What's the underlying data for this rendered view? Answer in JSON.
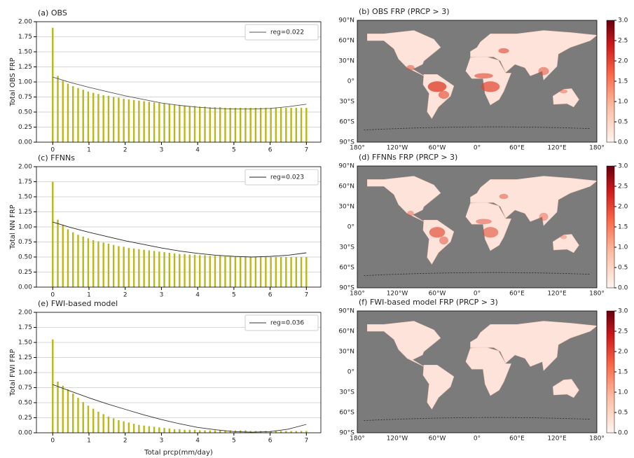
{
  "chart_data": [
    {
      "type": "bar",
      "title": "(a) OBS",
      "ylabel": "Total OBS FRP",
      "color": "#b8b818",
      "x": [
        0,
        0.14,
        0.28,
        0.42,
        0.56,
        0.7,
        0.84,
        0.98,
        1.12,
        1.26,
        1.4,
        1.54,
        1.68,
        1.82,
        1.96,
        2.1,
        2.24,
        2.38,
        2.52,
        2.66,
        2.8,
        2.94,
        3.08,
        3.22,
        3.36,
        3.5,
        3.64,
        3.78,
        3.92,
        4.06,
        4.2,
        4.34,
        4.48,
        4.62,
        4.76,
        4.9,
        5.04,
        5.18,
        5.32,
        5.46,
        5.6,
        5.74,
        5.88,
        6.02,
        6.16,
        6.3,
        6.44,
        6.58,
        6.72,
        6.86,
        7
      ],
      "values": [
        1.9,
        1.1,
        1.02,
        0.97,
        0.93,
        0.9,
        0.87,
        0.84,
        0.82,
        0.8,
        0.78,
        0.77,
        0.75,
        0.74,
        0.72,
        0.71,
        0.7,
        0.69,
        0.68,
        0.67,
        0.66,
        0.65,
        0.64,
        0.63,
        0.62,
        0.62,
        0.61,
        0.6,
        0.6,
        0.59,
        0.59,
        0.58,
        0.58,
        0.58,
        0.57,
        0.57,
        0.57,
        0.57,
        0.57,
        0.57,
        0.57,
        0.57,
        0.57,
        0.57,
        0.57,
        0.57,
        0.57,
        0.57,
        0.57,
        0.57,
        0.57
      ],
      "series": [
        {
          "name": "reg=0.022",
          "color": "#555555",
          "x": [
            0,
            0.5,
            1,
            1.5,
            2,
            2.5,
            3,
            3.5,
            4,
            4.5,
            5,
            5.5,
            6,
            6.5,
            7
          ],
          "values": [
            1.08,
            0.99,
            0.91,
            0.84,
            0.77,
            0.71,
            0.65,
            0.61,
            0.58,
            0.56,
            0.55,
            0.55,
            0.56,
            0.59,
            0.63
          ]
        }
      ],
      "xlim": [
        -0.45,
        7.4
      ],
      "xticks": [
        0,
        1,
        2,
        3,
        4,
        5,
        6,
        7
      ],
      "ylim": [
        0,
        2
      ],
      "yticks": [
        {
          "value": 0,
          "label": "0.00"
        },
        {
          "value": 0.25,
          "label": "0.25"
        },
        {
          "value": 0.5,
          "label": "0.50"
        },
        {
          "value": 0.75,
          "label": "0.75"
        },
        {
          "value": 1,
          "label": "1.00"
        },
        {
          "value": 1.25,
          "label": "1.25"
        },
        {
          "value": 1.5,
          "label": "1.50"
        },
        {
          "value": 1.75,
          "label": "1.75"
        },
        {
          "value": 2,
          "label": "2.00"
        }
      ],
      "grid": true
    },
    {
      "type": "bar",
      "title": "(c) FFNNs",
      "ylabel": "Total NN FRP",
      "color": "#b8b818",
      "x": [
        0,
        0.14,
        0.28,
        0.42,
        0.56,
        0.7,
        0.84,
        0.98,
        1.12,
        1.26,
        1.4,
        1.54,
        1.68,
        1.82,
        1.96,
        2.1,
        2.24,
        2.38,
        2.52,
        2.66,
        2.8,
        2.94,
        3.08,
        3.22,
        3.36,
        3.5,
        3.64,
        3.78,
        3.92,
        4.06,
        4.2,
        4.34,
        4.48,
        4.62,
        4.76,
        4.9,
        5.04,
        5.18,
        5.32,
        5.46,
        5.6,
        5.74,
        5.88,
        6.02,
        6.16,
        6.3,
        6.44,
        6.58,
        6.72,
        6.86,
        7
      ],
      "values": [
        1.75,
        1.12,
        1.03,
        0.96,
        0.91,
        0.87,
        0.84,
        0.81,
        0.78,
        0.76,
        0.74,
        0.72,
        0.7,
        0.68,
        0.67,
        0.65,
        0.64,
        0.63,
        0.62,
        0.61,
        0.6,
        0.59,
        0.58,
        0.57,
        0.56,
        0.55,
        0.55,
        0.54,
        0.54,
        0.53,
        0.53,
        0.52,
        0.52,
        0.52,
        0.51,
        0.51,
        0.51,
        0.51,
        0.5,
        0.5,
        0.5,
        0.5,
        0.5,
        0.5,
        0.5,
        0.5,
        0.5,
        0.5,
        0.5,
        0.5,
        0.5
      ],
      "series": [
        {
          "name": "reg=0.023",
          "color": "#222222",
          "x": [
            0,
            0.5,
            1,
            1.5,
            2,
            2.5,
            3,
            3.5,
            4,
            4.5,
            5,
            5.5,
            6,
            6.5,
            7
          ],
          "values": [
            1.08,
            0.99,
            0.91,
            0.84,
            0.77,
            0.71,
            0.65,
            0.6,
            0.56,
            0.53,
            0.51,
            0.5,
            0.51,
            0.53,
            0.57
          ]
        }
      ],
      "xlim": [
        -0.45,
        7.4
      ],
      "xticks": [
        0,
        1,
        2,
        3,
        4,
        5,
        6,
        7
      ],
      "ylim": [
        0,
        2
      ],
      "yticks": [
        {
          "value": 0,
          "label": "0.00"
        },
        {
          "value": 0.25,
          "label": "0.25"
        },
        {
          "value": 0.5,
          "label": "0.50"
        },
        {
          "value": 0.75,
          "label": "0.75"
        },
        {
          "value": 1,
          "label": "1.00"
        },
        {
          "value": 1.25,
          "label": "1.25"
        },
        {
          "value": 1.5,
          "label": "1.50"
        },
        {
          "value": 1.75,
          "label": "1.75"
        },
        {
          "value": 2,
          "label": "2.00"
        }
      ],
      "grid": true
    },
    {
      "type": "bar",
      "title": "(e) FWI-based model",
      "ylabel": "Total FWI FRP",
      "xlabel": "Total prcp(mm/day)",
      "color": "#b8b818",
      "x": [
        0,
        0.14,
        0.28,
        0.42,
        0.56,
        0.7,
        0.84,
        0.98,
        1.12,
        1.26,
        1.4,
        1.54,
        1.68,
        1.82,
        1.96,
        2.1,
        2.24,
        2.38,
        2.52,
        2.66,
        2.8,
        2.94,
        3.08,
        3.22,
        3.36,
        3.5,
        3.64,
        3.78,
        3.92,
        4.06,
        4.2,
        4.34,
        4.48,
        4.62,
        4.76,
        4.9,
        5.04,
        5.18,
        5.32,
        5.46,
        5.6,
        5.74,
        5.88,
        6.02,
        6.16,
        6.3,
        6.44,
        6.58,
        6.72,
        6.86,
        7
      ],
      "values": [
        1.55,
        0.85,
        0.78,
        0.72,
        0.65,
        0.58,
        0.51,
        0.45,
        0.4,
        0.35,
        0.31,
        0.27,
        0.24,
        0.21,
        0.19,
        0.17,
        0.15,
        0.13,
        0.12,
        0.11,
        0.1,
        0.09,
        0.08,
        0.07,
        0.06,
        0.06,
        0.05,
        0.05,
        0.05,
        0.04,
        0.04,
        0.04,
        0.04,
        0.04,
        0.04,
        0.04,
        0.04,
        0.04,
        0.04,
        0.03,
        0.03,
        0.03,
        0.03,
        0.03,
        0.03,
        0.03,
        0.03,
        0.03,
        0.03,
        0.03,
        0.03
      ],
      "series": [
        {
          "name": "reg=0.036",
          "color": "#333333",
          "x": [
            0,
            0.5,
            1,
            1.5,
            2,
            2.5,
            3,
            3.5,
            4,
            4.5,
            5,
            5.5,
            6,
            6.5,
            7
          ],
          "values": [
            0.8,
            0.69,
            0.58,
            0.48,
            0.39,
            0.3,
            0.22,
            0.15,
            0.09,
            0.05,
            0.02,
            0.01,
            0.02,
            0.06,
            0.14
          ]
        }
      ],
      "xlim": [
        -0.45,
        7.4
      ],
      "xticks": [
        0,
        1,
        2,
        3,
        4,
        5,
        6,
        7
      ],
      "ylim": [
        0,
        2
      ],
      "yticks": [
        {
          "value": 0,
          "label": "0.00"
        },
        {
          "value": 0.25,
          "label": "0.25"
        },
        {
          "value": 0.5,
          "label": "0.50"
        },
        {
          "value": 0.75,
          "label": "0.75"
        },
        {
          "value": 1,
          "label": "1.00"
        },
        {
          "value": 1.25,
          "label": "1.25"
        },
        {
          "value": 1.5,
          "label": "1.50"
        },
        {
          "value": 1.75,
          "label": "1.75"
        },
        {
          "value": 2,
          "label": "2.00"
        }
      ],
      "grid": true
    }
  ],
  "maps": [
    {
      "title": "(b) OBS FRP (PRCP > 3)"
    },
    {
      "title": "(d) FFNNs FRP (PRCP > 3)"
    },
    {
      "title": "(f) FWI-based model FRP (PRCP > 3)"
    }
  ],
  "map_axes": {
    "lat_labels": [
      "90°N",
      "60°N",
      "30°N",
      "0°",
      "30°S",
      "60°S",
      "90°S"
    ],
    "lon_labels": [
      "180°",
      "120°W",
      "60°W",
      "0°",
      "60°E",
      "120°E",
      "180°"
    ]
  },
  "colorbar": {
    "lim": [
      0,
      3
    ],
    "ticks": [
      {
        "value": 0,
        "label": "0.0"
      },
      {
        "value": 0.5,
        "label": "0.5"
      },
      {
        "value": 1,
        "label": "1.0"
      },
      {
        "value": 1.5,
        "label": "1.5"
      },
      {
        "value": 2,
        "label": "2.0"
      },
      {
        "value": 2.5,
        "label": "2.5"
      },
      {
        "value": 3,
        "label": "3.0"
      }
    ]
  }
}
